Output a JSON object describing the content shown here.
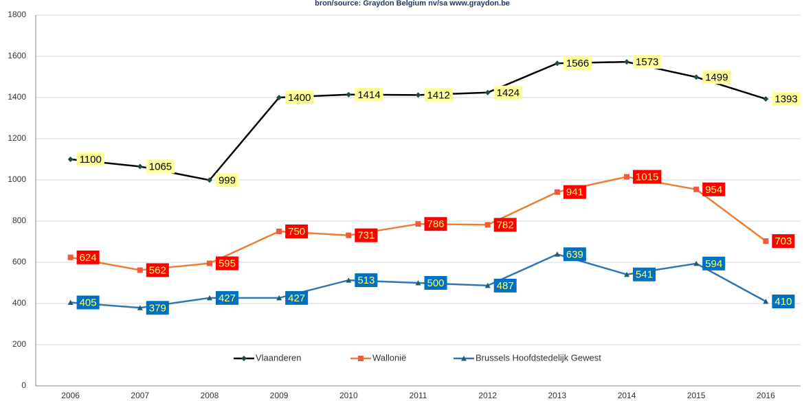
{
  "chart_data": {
    "type": "line",
    "subtitle": "bron/source:  Graydon Belgium nv/sa    www.graydon.be",
    "categories": [
      "2006",
      "2007",
      "2008",
      "2009",
      "2010",
      "2011",
      "2012",
      "2013",
      "2014",
      "2015",
      "2016"
    ],
    "series": [
      {
        "name": "Vlaanderen",
        "color": "#000000",
        "marker": "diamond",
        "marker_color": "#1e4d3a",
        "label_fill": "#ffff99",
        "label_color": "#000000",
        "values": [
          1100,
          1065,
          999,
          1400,
          1414,
          1412,
          1424,
          1566,
          1573,
          1499,
          1393
        ]
      },
      {
        "name": "Wallonië",
        "color": "#ed7d31",
        "marker": "square",
        "marker_color": "#f05a3a",
        "label_fill": "#ff0000",
        "label_color": "#ffff66",
        "values": [
          624,
          562,
          595,
          750,
          731,
          786,
          782,
          941,
          1015,
          954,
          703
        ]
      },
      {
        "name": "Brussels Hoofdstedelijk Gewest",
        "color": "#2e75b6",
        "marker": "triangle",
        "marker_color": "#1f5e6e",
        "label_fill": "#0070c0",
        "label_color": "#ffff66",
        "values": [
          405,
          379,
          427,
          427,
          513,
          500,
          487,
          639,
          541,
          594,
          410
        ]
      }
    ],
    "ylim": [
      0,
      1800
    ],
    "yticks": [
      0,
      200,
      400,
      600,
      800,
      1000,
      1200,
      1400,
      1600,
      1800
    ],
    "grid": true,
    "legend": "bottom"
  }
}
